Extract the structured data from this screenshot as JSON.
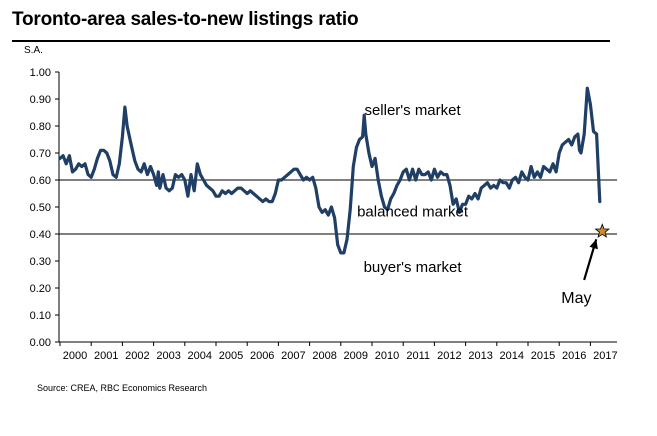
{
  "title": "Toronto-area sales-to-new listings ratio",
  "source": "Source: CREA, RBC Economics Research",
  "chart_data": {
    "type": "line",
    "ylabel": "S.A.",
    "ylim": [
      0.0,
      1.0
    ],
    "yticks": [
      0.0,
      0.1,
      0.2,
      0.3,
      0.4,
      0.5,
      0.6,
      0.7,
      0.8,
      0.9,
      1.0
    ],
    "ytick_labels": [
      "0.00",
      "0.10",
      "0.20",
      "0.30",
      "0.40",
      "0.50",
      "0.60",
      "0.70",
      "0.80",
      "0.90",
      "1.00"
    ],
    "xlim": [
      2000,
      2017.5
    ],
    "xticks": [
      2000,
      2001,
      2002,
      2003,
      2004,
      2005,
      2006,
      2007,
      2008,
      2009,
      2010,
      2011,
      2012,
      2013,
      2014,
      2015,
      2016,
      2017
    ],
    "xtick_labels": [
      "2000",
      "2001",
      "2002",
      "2003",
      "2004",
      "2005",
      "2006",
      "2007",
      "2008",
      "2009",
      "2010",
      "2011",
      "2012",
      "2013",
      "2014",
      "2015",
      "2016",
      "2017"
    ],
    "grid": false,
    "line_color": "#1f3f66",
    "reference_lines": [
      {
        "y": 0.6,
        "color": "#000000"
      },
      {
        "y": 0.4,
        "color": "#000000"
      }
    ],
    "annotations": [
      {
        "text": "seller's market",
        "x": 2011.3,
        "y": 0.84
      },
      {
        "text": "balanced market",
        "x": 2011.3,
        "y": 0.465
      },
      {
        "text": "buyer's market",
        "x": 2011.3,
        "y": 0.26
      },
      {
        "text": "May",
        "x": 2016.55,
        "y": 0.145
      }
    ],
    "marker": {
      "label": "May",
      "x": 2017.38,
      "y": 0.41,
      "symbol": "star",
      "color": "#d08a2a"
    },
    "series": [
      {
        "points": [
          [
            2000.0,
            0.68
          ],
          [
            2000.1,
            0.69
          ],
          [
            2000.2,
            0.66
          ],
          [
            2000.3,
            0.69
          ],
          [
            2000.4,
            0.63
          ],
          [
            2000.5,
            0.64
          ],
          [
            2000.6,
            0.66
          ],
          [
            2000.7,
            0.65
          ],
          [
            2000.8,
            0.66
          ],
          [
            2000.9,
            0.62
          ],
          [
            2001.0,
            0.61
          ],
          [
            2001.1,
            0.64
          ],
          [
            2001.2,
            0.68
          ],
          [
            2001.3,
            0.71
          ],
          [
            2001.4,
            0.71
          ],
          [
            2001.5,
            0.7
          ],
          [
            2001.6,
            0.67
          ],
          [
            2001.7,
            0.62
          ],
          [
            2001.8,
            0.61
          ],
          [
            2001.9,
            0.66
          ],
          [
            2002.0,
            0.76
          ],
          [
            2002.08,
            0.87
          ],
          [
            2002.15,
            0.8
          ],
          [
            2002.3,
            0.72
          ],
          [
            2002.4,
            0.67
          ],
          [
            2002.5,
            0.64
          ],
          [
            2002.6,
            0.63
          ],
          [
            2002.7,
            0.66
          ],
          [
            2002.8,
            0.62
          ],
          [
            2002.9,
            0.65
          ],
          [
            2003.0,
            0.62
          ],
          [
            2003.1,
            0.58
          ],
          [
            2003.15,
            0.63
          ],
          [
            2003.2,
            0.57
          ],
          [
            2003.3,
            0.62
          ],
          [
            2003.4,
            0.57
          ],
          [
            2003.5,
            0.56
          ],
          [
            2003.6,
            0.57
          ],
          [
            2003.7,
            0.62
          ],
          [
            2003.8,
            0.61
          ],
          [
            2003.9,
            0.62
          ],
          [
            2004.0,
            0.6
          ],
          [
            2004.1,
            0.54
          ],
          [
            2004.2,
            0.62
          ],
          [
            2004.3,
            0.56
          ],
          [
            2004.4,
            0.66
          ],
          [
            2004.5,
            0.62
          ],
          [
            2004.6,
            0.6
          ],
          [
            2004.7,
            0.58
          ],
          [
            2004.8,
            0.57
          ],
          [
            2004.9,
            0.56
          ],
          [
            2005.0,
            0.54
          ],
          [
            2005.1,
            0.54
          ],
          [
            2005.2,
            0.56
          ],
          [
            2005.3,
            0.55
          ],
          [
            2005.4,
            0.56
          ],
          [
            2005.5,
            0.55
          ],
          [
            2005.6,
            0.56
          ],
          [
            2005.7,
            0.57
          ],
          [
            2005.8,
            0.57
          ],
          [
            2005.9,
            0.56
          ],
          [
            2006.0,
            0.55
          ],
          [
            2006.1,
            0.56
          ],
          [
            2006.2,
            0.55
          ],
          [
            2006.3,
            0.54
          ],
          [
            2006.4,
            0.53
          ],
          [
            2006.5,
            0.52
          ],
          [
            2006.6,
            0.53
          ],
          [
            2006.7,
            0.52
          ],
          [
            2006.8,
            0.52
          ],
          [
            2006.9,
            0.55
          ],
          [
            2007.0,
            0.6
          ],
          [
            2007.1,
            0.6
          ],
          [
            2007.2,
            0.61
          ],
          [
            2007.3,
            0.62
          ],
          [
            2007.4,
            0.63
          ],
          [
            2007.5,
            0.64
          ],
          [
            2007.6,
            0.64
          ],
          [
            2007.7,
            0.62
          ],
          [
            2007.8,
            0.6
          ],
          [
            2007.9,
            0.61
          ],
          [
            2008.0,
            0.6
          ],
          [
            2008.1,
            0.61
          ],
          [
            2008.2,
            0.57
          ],
          [
            2008.3,
            0.5
          ],
          [
            2008.4,
            0.48
          ],
          [
            2008.5,
            0.49
          ],
          [
            2008.6,
            0.47
          ],
          [
            2008.7,
            0.5
          ],
          [
            2008.8,
            0.46
          ],
          [
            2008.9,
            0.36
          ],
          [
            2009.0,
            0.33
          ],
          [
            2009.1,
            0.33
          ],
          [
            2009.2,
            0.38
          ],
          [
            2009.3,
            0.49
          ],
          [
            2009.4,
            0.65
          ],
          [
            2009.5,
            0.72
          ],
          [
            2009.6,
            0.75
          ],
          [
            2009.7,
            0.76
          ],
          [
            2009.75,
            0.84
          ],
          [
            2009.8,
            0.77
          ],
          [
            2009.9,
            0.7
          ],
          [
            2010.0,
            0.65
          ],
          [
            2010.1,
            0.68
          ],
          [
            2010.2,
            0.6
          ],
          [
            2010.3,
            0.54
          ],
          [
            2010.4,
            0.5
          ],
          [
            2010.5,
            0.49
          ],
          [
            2010.6,
            0.53
          ],
          [
            2010.7,
            0.55
          ],
          [
            2010.8,
            0.58
          ],
          [
            2010.9,
            0.6
          ],
          [
            2011.0,
            0.63
          ],
          [
            2011.1,
            0.64
          ],
          [
            2011.2,
            0.6
          ],
          [
            2011.3,
            0.64
          ],
          [
            2011.4,
            0.6
          ],
          [
            2011.5,
            0.64
          ],
          [
            2011.6,
            0.62
          ],
          [
            2011.7,
            0.62
          ],
          [
            2011.8,
            0.63
          ],
          [
            2011.9,
            0.6
          ],
          [
            2012.0,
            0.64
          ],
          [
            2012.1,
            0.61
          ],
          [
            2012.2,
            0.63
          ],
          [
            2012.3,
            0.62
          ],
          [
            2012.4,
            0.62
          ],
          [
            2012.5,
            0.58
          ],
          [
            2012.6,
            0.51
          ],
          [
            2012.7,
            0.53
          ],
          [
            2012.8,
            0.48
          ],
          [
            2012.9,
            0.51
          ],
          [
            2013.0,
            0.51
          ],
          [
            2013.1,
            0.54
          ],
          [
            2013.2,
            0.53
          ],
          [
            2013.3,
            0.55
          ],
          [
            2013.4,
            0.53
          ],
          [
            2013.5,
            0.57
          ],
          [
            2013.6,
            0.58
          ],
          [
            2013.7,
            0.59
          ],
          [
            2013.8,
            0.57
          ],
          [
            2013.9,
            0.58
          ],
          [
            2014.0,
            0.57
          ],
          [
            2014.1,
            0.6
          ],
          [
            2014.2,
            0.59
          ],
          [
            2014.3,
            0.59
          ],
          [
            2014.4,
            0.57
          ],
          [
            2014.5,
            0.6
          ],
          [
            2014.6,
            0.61
          ],
          [
            2014.7,
            0.59
          ],
          [
            2014.8,
            0.63
          ],
          [
            2014.9,
            0.61
          ],
          [
            2015.0,
            0.6
          ],
          [
            2015.1,
            0.65
          ],
          [
            2015.2,
            0.61
          ],
          [
            2015.3,
            0.63
          ],
          [
            2015.4,
            0.61
          ],
          [
            2015.5,
            0.65
          ],
          [
            2015.6,
            0.64
          ],
          [
            2015.7,
            0.63
          ],
          [
            2015.8,
            0.66
          ],
          [
            2015.9,
            0.63
          ],
          [
            2016.0,
            0.7
          ],
          [
            2016.1,
            0.73
          ],
          [
            2016.2,
            0.74
          ],
          [
            2016.3,
            0.75
          ],
          [
            2016.4,
            0.73
          ],
          [
            2016.5,
            0.76
          ],
          [
            2016.6,
            0.77
          ],
          [
            2016.65,
            0.71
          ],
          [
            2016.7,
            0.7
          ],
          [
            2016.8,
            0.77
          ],
          [
            2016.9,
            0.94
          ],
          [
            2017.0,
            0.88
          ],
          [
            2017.1,
            0.78
          ],
          [
            2017.2,
            0.77
          ],
          [
            2017.3,
            0.52
          ]
        ]
      }
    ]
  }
}
